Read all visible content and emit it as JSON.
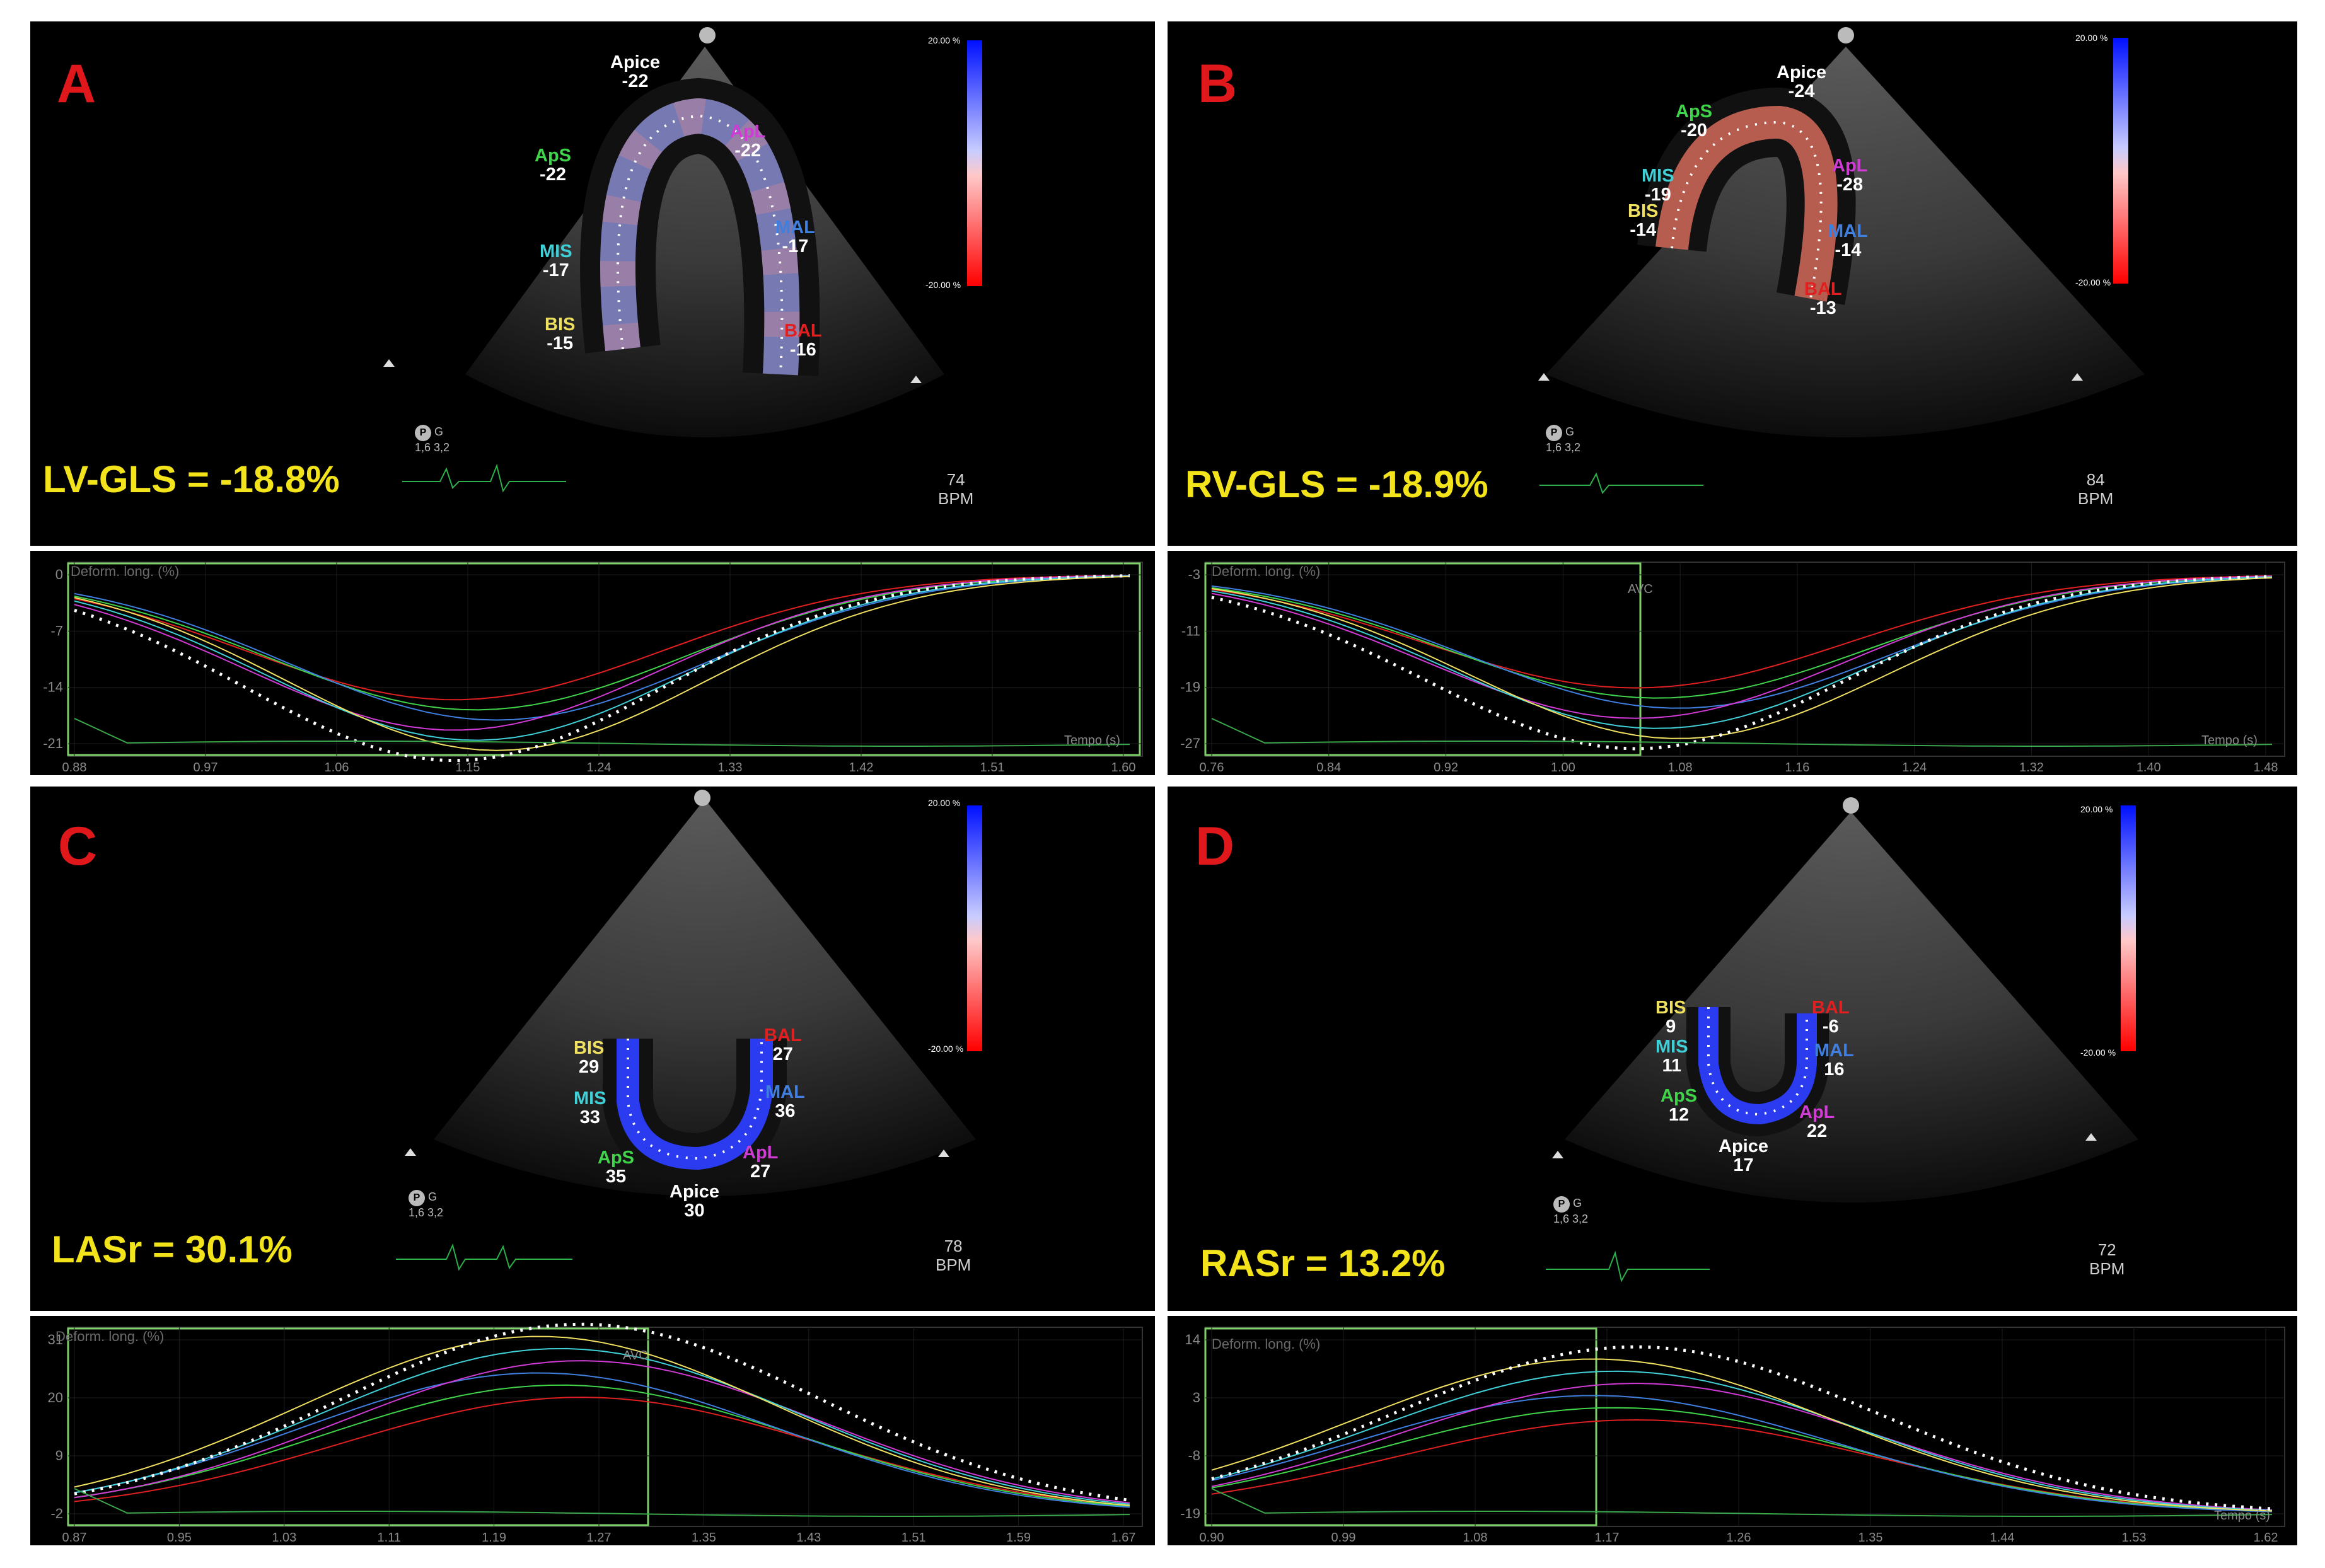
{
  "panels": [
    {
      "letter": "A",
      "metric": "LV-GLS = -18.8%",
      "bpm": "74",
      "bpm_unit": "BPM",
      "scale_top": "20.00 %",
      "scale_bottom": "-20.00 %",
      "segments": [
        {
          "label": "Apice",
          "value": "-22",
          "color": "#ffffff"
        },
        {
          "label": "ApS",
          "value": "-22",
          "color": "#3fd44a"
        },
        {
          "label": "ApL",
          "value": "-22",
          "color": "#d23ad6"
        },
        {
          "label": "MIS",
          "value": "-17",
          "color": "#3fd0d8"
        },
        {
          "label": "MAL",
          "value": "-17",
          "color": "#3f7fe0"
        },
        {
          "label": "BIS",
          "value": "-15",
          "color": "#f0e060"
        },
        {
          "label": "BAL",
          "value": "-16",
          "color": "#e02020"
        }
      ],
      "plot": {
        "title": "Deform. long. (%)",
        "marker": "",
        "x_label": "Tempo (s)",
        "y_ticks": [
          "0",
          "-7",
          "-14",
          "-21"
        ],
        "x_ticks": [
          "0.88",
          "0.97",
          "1.06",
          "1.15",
          "1.24",
          "1.33",
          "1.42",
          "1.51",
          "1.60"
        ]
      }
    },
    {
      "letter": "B",
      "metric": "RV-GLS = -18.9%",
      "bpm": "84",
      "bpm_unit": "BPM",
      "scale_top": "20.00 %",
      "scale_bottom": "-20.00 %",
      "segments": [
        {
          "label": "Apice",
          "value": "-24",
          "color": "#ffffff"
        },
        {
          "label": "ApS",
          "value": "-20",
          "color": "#3fd44a"
        },
        {
          "label": "ApL",
          "value": "-28",
          "color": "#d23ad6"
        },
        {
          "label": "MIS",
          "value": "-19",
          "color": "#3fd0d8"
        },
        {
          "label": "BIS",
          "value": "-14",
          "color": "#f0e060"
        },
        {
          "label": "MAL",
          "value": "-14",
          "color": "#3f7fe0"
        },
        {
          "label": "BAL",
          "value": "-13",
          "color": "#e02020"
        }
      ],
      "plot": {
        "title": "Deform. long. (%)",
        "marker": "AVC",
        "x_label": "Tempo (s)",
        "y_ticks": [
          "-3",
          "-11",
          "-19",
          "-27"
        ],
        "x_ticks": [
          "0.76",
          "0.84",
          "0.92",
          "1.00",
          "1.08",
          "1.16",
          "1.24",
          "1.32",
          "1.40",
          "1.48"
        ]
      }
    },
    {
      "letter": "C",
      "metric": "LASr = 30.1%",
      "bpm": "78",
      "bpm_unit": "BPM",
      "scale_top": "20.00 %",
      "scale_bottom": "-20.00 %",
      "segments": [
        {
          "label": "BIS",
          "value": "29",
          "color": "#f0e060"
        },
        {
          "label": "BAL",
          "value": "27",
          "color": "#e02020"
        },
        {
          "label": "MIS",
          "value": "33",
          "color": "#3fd0d8"
        },
        {
          "label": "MAL",
          "value": "36",
          "color": "#3f7fe0"
        },
        {
          "label": "ApS",
          "value": "35",
          "color": "#3fd44a"
        },
        {
          "label": "ApL",
          "value": "27",
          "color": "#d23ad6"
        },
        {
          "label": "Apice",
          "value": "30",
          "color": "#ffffff"
        }
      ],
      "plot": {
        "title": "Deform. long. (%)",
        "marker": "AVC",
        "x_label": "",
        "y_ticks": [
          "31",
          "20",
          "9",
          "-2"
        ],
        "x_ticks": [
          "0.87",
          "0.95",
          "1.03",
          "1.11",
          "1.19",
          "1.27",
          "1.35",
          "1.43",
          "1.51",
          "1.59",
          "1.67"
        ]
      }
    },
    {
      "letter": "D",
      "metric": "RASr = 13.2%",
      "bpm": "72",
      "bpm_unit": "BPM",
      "scale_top": "20.00 %",
      "scale_bottom": "-20.00 %",
      "segments": [
        {
          "label": "BIS",
          "value": "9",
          "color": "#f0e060"
        },
        {
          "label": "BAL",
          "value": "-6",
          "color": "#e02020"
        },
        {
          "label": "MIS",
          "value": "11",
          "color": "#3fd0d8"
        },
        {
          "label": "MAL",
          "value": "16",
          "color": "#3f7fe0"
        },
        {
          "label": "ApS",
          "value": "12",
          "color": "#3fd44a"
        },
        {
          "label": "ApL",
          "value": "22",
          "color": "#d23ad6"
        },
        {
          "label": "Apice",
          "value": "17",
          "color": "#ffffff"
        }
      ],
      "plot": {
        "title": "Deform. long. (%)",
        "marker": "",
        "x_label": "Tempo (s)",
        "y_ticks": [
          "14",
          "3",
          "-8",
          "-19"
        ],
        "x_ticks": [
          "0.90",
          "0.99",
          "1.08",
          "1.17",
          "1.26",
          "1.35",
          "1.44",
          "1.53",
          "1.62"
        ]
      }
    }
  ],
  "probe": {
    "line1": "G",
    "line2": "1,6   3,2",
    "mark": "P"
  }
}
